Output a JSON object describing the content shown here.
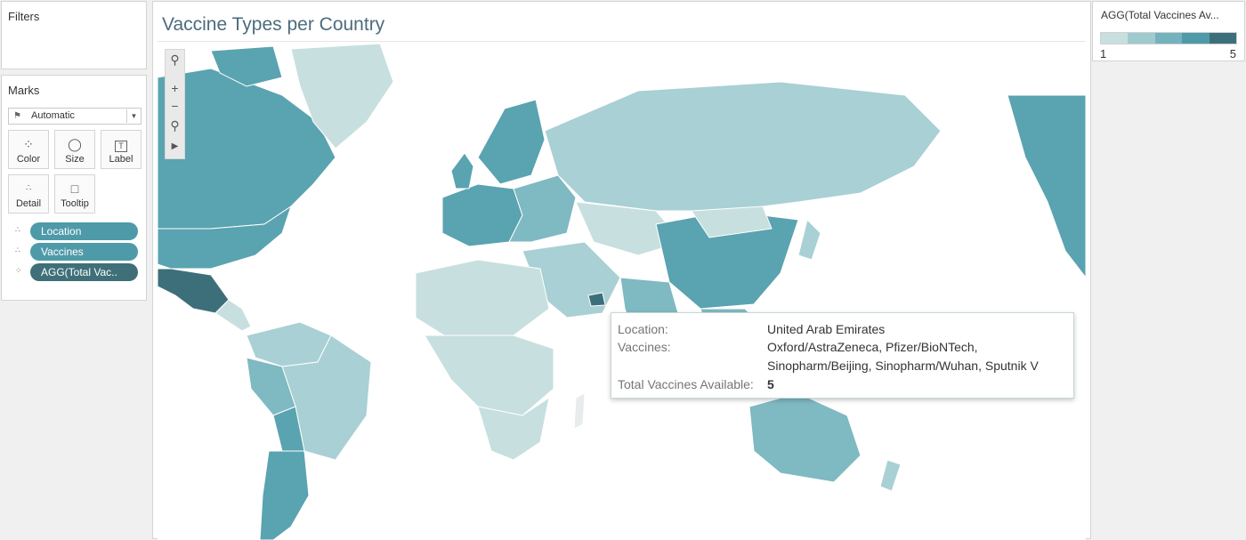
{
  "filters": {
    "title": "Filters"
  },
  "marks": {
    "title": "Marks",
    "mark_type": "Automatic",
    "buttons": {
      "color": "Color",
      "size": "Size",
      "label": "Label",
      "detail": "Detail",
      "tooltip": "Tooltip"
    },
    "pills": [
      "Location",
      "Vaccines",
      "AGG(Total Vac.."
    ]
  },
  "view": {
    "title": "Vaccine Types per Country"
  },
  "tooltip": {
    "location_label": "Location:",
    "location_value": "United Arab Emirates",
    "vaccines_label": "Vaccines:",
    "vaccines_line1": "Oxford/AstraZeneca, Pfizer/BioNTech,",
    "vaccines_line2": "Sinopharm/Beijing, Sinopharm/Wuhan, Sputnik V",
    "total_label": "Total Vaccines Available:",
    "total_value": "5"
  },
  "legend": {
    "title": "AGG(Total Vaccines Av...",
    "min": "1",
    "max": "5",
    "colors": [
      "#c7dfdf",
      "#9fcbcf",
      "#74b3bd",
      "#4f9aa8",
      "#3d6f7b"
    ]
  },
  "colors": {
    "accent": "#4f9aa8",
    "title": "#4b6c7d",
    "level1": "#c7dfdf",
    "level2": "#a9d0d4",
    "level3": "#7fb9c2",
    "level4": "#5aa3b0",
    "level5": "#3d6f7b",
    "no_data": "#e9ecec"
  }
}
